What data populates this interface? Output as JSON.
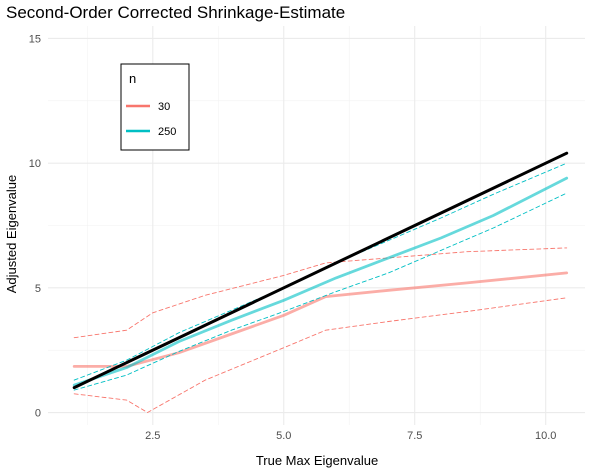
{
  "chart_data": {
    "type": "line",
    "title": "Second-Order Corrected Shrinkage-Estimate",
    "xlabel": "True Max Eigenvalue",
    "ylabel": "Adjusted Eigenvalue",
    "xlim": [
      0.5,
      10.75
    ],
    "ylim": [
      -0.5,
      15.5
    ],
    "x_ticks": [
      2.5,
      5.0,
      7.5,
      10.0
    ],
    "x_tick_labels": [
      "2.5",
      "5.0",
      "7.5",
      "10.0"
    ],
    "y_ticks": [
      0,
      5,
      10,
      15
    ],
    "y_tick_labels": [
      "0",
      "5",
      "10",
      "15"
    ],
    "grid": true,
    "legend": {
      "title": "n",
      "position": "top-left",
      "entries": [
        {
          "label": "30",
          "color": "#F8766D"
        },
        {
          "label": "250",
          "color": "#00BFC4"
        }
      ]
    },
    "series": [
      {
        "name": "30",
        "color": "#F8766D",
        "style": "solid",
        "points": [
          [
            1.0,
            1.85
          ],
          [
            2.0,
            1.85
          ],
          [
            3.0,
            2.4
          ],
          [
            4.0,
            3.15
          ],
          [
            5.0,
            3.9
          ],
          [
            5.8,
            4.65
          ],
          [
            7.0,
            4.9
          ],
          [
            8.5,
            5.2
          ],
          [
            10.4,
            5.6
          ]
        ]
      },
      {
        "name": "30 upper bound",
        "color": "#F8766D",
        "style": "dashed",
        "points": [
          [
            1.0,
            3.0
          ],
          [
            2.0,
            3.3
          ],
          [
            2.5,
            4.0
          ],
          [
            3.5,
            4.7
          ],
          [
            5.0,
            5.5
          ],
          [
            5.8,
            6.0
          ],
          [
            7.0,
            6.2
          ],
          [
            8.5,
            6.45
          ],
          [
            10.4,
            6.6
          ]
        ]
      },
      {
        "name": "30 lower bound",
        "color": "#F8766D",
        "style": "dashed",
        "points": [
          [
            1.0,
            0.75
          ],
          [
            2.0,
            0.5
          ],
          [
            2.4,
            0.0
          ],
          [
            3.5,
            1.3
          ],
          [
            5.0,
            2.6
          ],
          [
            5.8,
            3.3
          ],
          [
            7.0,
            3.65
          ],
          [
            8.5,
            4.05
          ],
          [
            10.4,
            4.6
          ]
        ]
      },
      {
        "name": "250",
        "color": "#00BFC4",
        "style": "solid",
        "points": [
          [
            1.0,
            1.1
          ],
          [
            2.0,
            1.8
          ],
          [
            3.0,
            2.85
          ],
          [
            4.0,
            3.7
          ],
          [
            5.0,
            4.5
          ],
          [
            6.0,
            5.4
          ],
          [
            7.0,
            6.2
          ],
          [
            8.0,
            7.0
          ],
          [
            9.0,
            7.9
          ],
          [
            10.4,
            9.4
          ]
        ]
      },
      {
        "name": "250 upper bound",
        "color": "#00BFC4",
        "style": "dashed",
        "points": [
          [
            1.0,
            1.3
          ],
          [
            2.0,
            2.1
          ],
          [
            3.0,
            3.2
          ],
          [
            4.0,
            4.1
          ],
          [
            5.0,
            5.0
          ],
          [
            6.0,
            6.0
          ],
          [
            7.0,
            6.9
          ],
          [
            8.0,
            7.8
          ],
          [
            9.0,
            8.75
          ],
          [
            10.4,
            10.0
          ]
        ]
      },
      {
        "name": "250 lower bound",
        "color": "#00BFC4",
        "style": "dashed",
        "points": [
          [
            1.0,
            0.9
          ],
          [
            2.0,
            1.5
          ],
          [
            3.0,
            2.45
          ],
          [
            4.0,
            3.3
          ],
          [
            5.0,
            4.05
          ],
          [
            6.0,
            4.85
          ],
          [
            7.0,
            5.6
          ],
          [
            8.0,
            6.5
          ],
          [
            9.0,
            7.4
          ],
          [
            10.4,
            8.8
          ]
        ]
      },
      {
        "name": "identity",
        "color": "#000000",
        "style": "solid",
        "points": [
          [
            1.0,
            1.0
          ],
          [
            10.4,
            10.4
          ]
        ]
      }
    ]
  }
}
